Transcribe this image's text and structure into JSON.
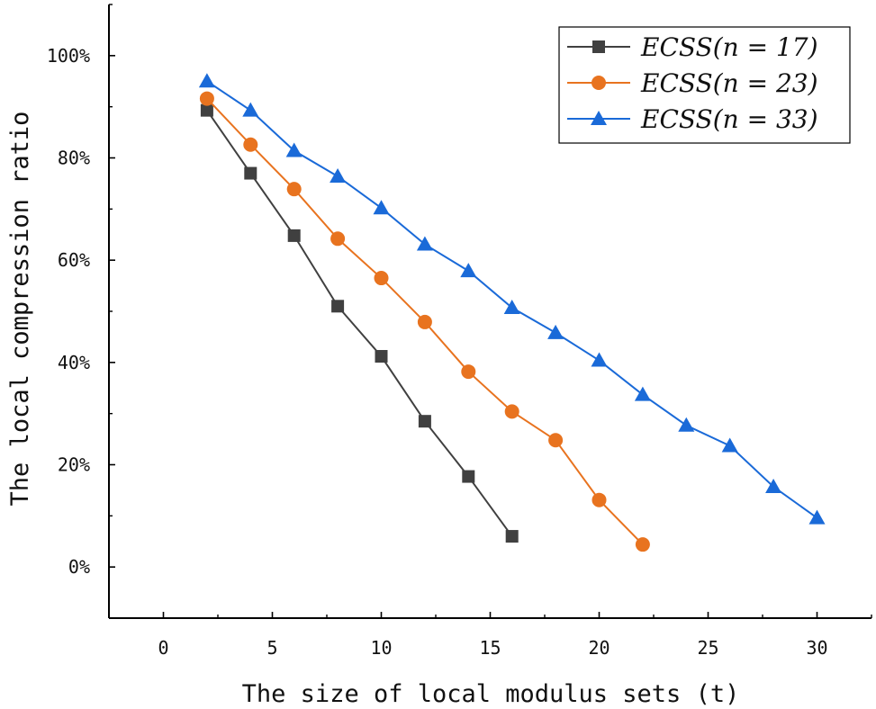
{
  "chart_data": {
    "type": "line",
    "title": "",
    "xlabel": "The size of local modulus sets (t)",
    "ylabel": "The local compression ratio",
    "xlim": [
      -2.5,
      32.5
    ],
    "ylim": [
      -10,
      110
    ],
    "x_ticks": [
      0,
      5,
      10,
      15,
      20,
      25,
      30
    ],
    "x_tick_labels": [
      "0",
      "5",
      "10",
      "15",
      "20",
      "25",
      "30"
    ],
    "y_ticks": [
      0,
      20,
      40,
      60,
      80,
      100
    ],
    "y_tick_labels": [
      "0%",
      "20%",
      "40%",
      "60%",
      "80%",
      "100%"
    ],
    "grid": false,
    "legend_position": "top-right",
    "series": [
      {
        "name": "ECSS(n = 17)",
        "color": "#404040",
        "marker": "square",
        "x": [
          2,
          4,
          6,
          8,
          10,
          12,
          14,
          16
        ],
        "values": [
          89.3,
          77,
          64.8,
          51,
          41.2,
          28.5,
          17.7,
          6
        ]
      },
      {
        "name": "ECSS(n = 23)",
        "color": "#E8731F",
        "marker": "circle",
        "x": [
          2,
          4,
          6,
          8,
          10,
          12,
          14,
          16,
          18,
          20,
          22
        ],
        "values": [
          91.6,
          82.6,
          73.9,
          64.2,
          56.5,
          47.9,
          38.2,
          30.4,
          24.8,
          13.1,
          4.4
        ]
      },
      {
        "name": "ECSS(n = 33)",
        "color": "#1A6AD8",
        "marker": "triangle",
        "x": [
          2,
          4,
          6,
          8,
          10,
          12,
          14,
          16,
          18,
          20,
          22,
          24,
          26,
          28,
          30
        ],
        "values": [
          95,
          89.3,
          81.4,
          76.4,
          70.2,
          63.1,
          57.9,
          50.7,
          45.8,
          40.4,
          33.7,
          27.7,
          23.7,
          15.7,
          9.6
        ]
      }
    ]
  }
}
